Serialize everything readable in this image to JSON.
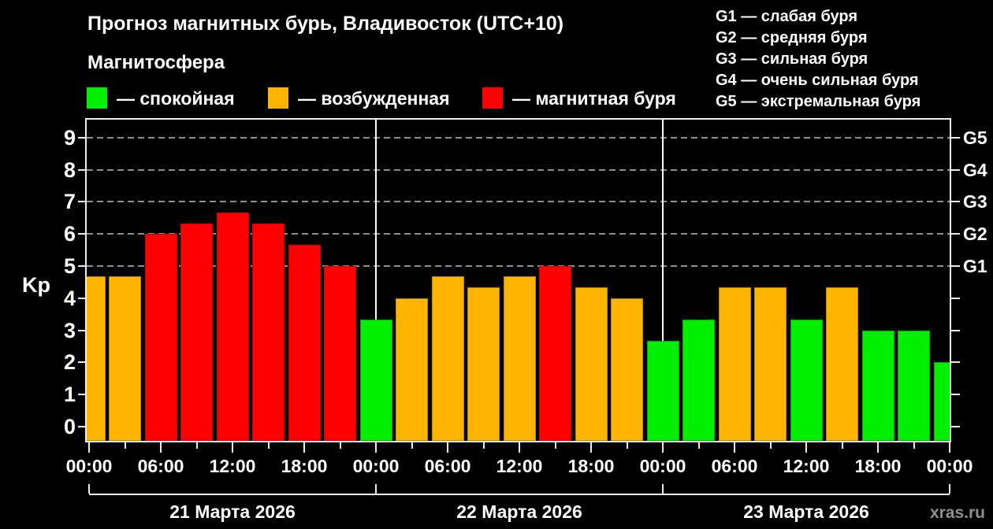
{
  "header": {
    "title": "Прогноз магнитных бурь, Владивосток (UTC+10)",
    "subtitle": "Магнитосфера",
    "legend": [
      {
        "key": "quiet",
        "label": "— спокойная"
      },
      {
        "key": "unsettled",
        "label": "— возбужденная"
      },
      {
        "key": "storm",
        "label": "— магнитная буря"
      }
    ],
    "g_scale": [
      "G1 — слабая буря",
      "G2 — средняя буря",
      "G3 — сильная буря",
      "G4 — очень сильная буря",
      "G5 — экстремальная буря"
    ]
  },
  "watermark": "xras.ru",
  "colors": {
    "background": "#000000",
    "text": "#FFFFFF",
    "axis": "#EBEBEB",
    "grid": "#8E8E8E",
    "dayline": "#FFFFFF",
    "watermark": "#8F8F8F",
    "quiet": "#00F000",
    "unsettled": "#FFB400",
    "storm": "#FF0000",
    "quiet_border": "#00A800",
    "unsettled_border": "#C08500",
    "storm_border": "#CC0000"
  },
  "chart_data": {
    "type": "bar",
    "title": "Прогноз магнитных бурь, Владивосток (UTC+10)",
    "xlabel": "",
    "ylabel": "Kp",
    "ylim": [
      0,
      9
    ],
    "y_ticks": [
      0,
      1,
      2,
      3,
      4,
      5,
      6,
      7,
      8,
      9
    ],
    "gridlines_at": [
      5,
      6,
      7,
      8,
      9
    ],
    "grid": true,
    "legend_position": "top",
    "right_axis": [
      {
        "value": 5,
        "label": "G1"
      },
      {
        "value": 6,
        "label": "G2"
      },
      {
        "value": 7,
        "label": "G3"
      },
      {
        "value": 8,
        "label": "G4"
      },
      {
        "value": 9,
        "label": "G5"
      }
    ],
    "hours_per_bar": 3,
    "x_major_tick_hours": 6,
    "x_minor_tick_hours": 3,
    "x_tick_labels_cycle": [
      "00:00",
      "06:00",
      "12:00",
      "18:00"
    ],
    "days": [
      {
        "label": "21 Марта 2026"
      },
      {
        "label": "22 Марта 2026"
      },
      {
        "label": "23 Марта 2026"
      }
    ],
    "bars": [
      {
        "hour": 0,
        "kp": 4.67,
        "state": "unsettled"
      },
      {
        "hour": 3,
        "kp": 4.67,
        "state": "unsettled"
      },
      {
        "hour": 6,
        "kp": 6.0,
        "state": "storm"
      },
      {
        "hour": 9,
        "kp": 6.33,
        "state": "storm"
      },
      {
        "hour": 12,
        "kp": 6.67,
        "state": "storm"
      },
      {
        "hour": 15,
        "kp": 6.33,
        "state": "storm"
      },
      {
        "hour": 18,
        "kp": 5.67,
        "state": "storm"
      },
      {
        "hour": 21,
        "kp": 5.0,
        "state": "storm"
      },
      {
        "hour": 24,
        "kp": 3.33,
        "state": "quiet"
      },
      {
        "hour": 27,
        "kp": 4.0,
        "state": "unsettled"
      },
      {
        "hour": 30,
        "kp": 4.67,
        "state": "unsettled"
      },
      {
        "hour": 33,
        "kp": 4.33,
        "state": "unsettled"
      },
      {
        "hour": 36,
        "kp": 4.67,
        "state": "unsettled"
      },
      {
        "hour": 39,
        "kp": 5.0,
        "state": "storm"
      },
      {
        "hour": 42,
        "kp": 4.33,
        "state": "unsettled"
      },
      {
        "hour": 45,
        "kp": 4.0,
        "state": "unsettled"
      },
      {
        "hour": 48,
        "kp": 2.67,
        "state": "quiet"
      },
      {
        "hour": 51,
        "kp": 3.33,
        "state": "quiet"
      },
      {
        "hour": 54,
        "kp": 4.33,
        "state": "unsettled"
      },
      {
        "hour": 57,
        "kp": 4.33,
        "state": "unsettled"
      },
      {
        "hour": 60,
        "kp": 3.33,
        "state": "quiet"
      },
      {
        "hour": 63,
        "kp": 4.33,
        "state": "unsettled"
      },
      {
        "hour": 66,
        "kp": 3.0,
        "state": "quiet"
      },
      {
        "hour": 69,
        "kp": 3.0,
        "state": "quiet"
      },
      {
        "hour": 72,
        "kp": 2.0,
        "state": "quiet"
      }
    ]
  }
}
